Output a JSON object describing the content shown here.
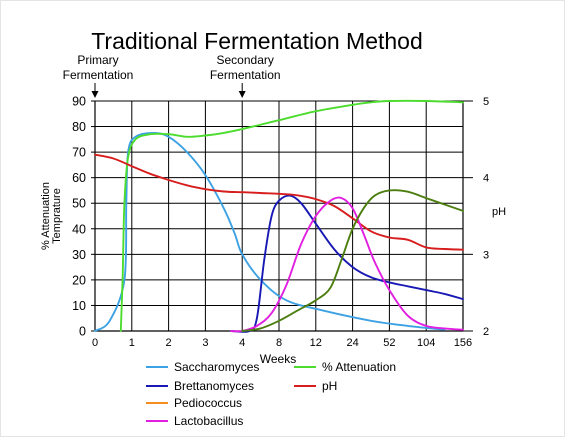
{
  "chart_data": {
    "type": "line",
    "title": "Traditional Fermentation Method",
    "annotations": [
      {
        "lines": [
          "Primary",
          "Fermentation"
        ],
        "at_x_label": "0"
      },
      {
        "lines": [
          "Secondary",
          "Fermentation"
        ],
        "at_x_label": "4"
      }
    ],
    "xlabel": "Weeks",
    "x_tick_labels": [
      "0",
      "1",
      "2",
      "3",
      "4",
      "8",
      "12",
      "24",
      "52",
      "104",
      "156"
    ],
    "y_left": {
      "label_lines": [
        "% Attenuation",
        "Temprature"
      ],
      "ticks": [
        0,
        10,
        20,
        30,
        40,
        50,
        60,
        70,
        80,
        90
      ],
      "range": [
        0,
        90
      ]
    },
    "y_right": {
      "label": "pH",
      "ticks": [
        2,
        3,
        4,
        5
      ],
      "range": [
        2,
        5
      ]
    },
    "grid": true,
    "legend_position": "bottom",
    "series": [
      {
        "name": "Saccharomyces",
        "color": "#3da2e3",
        "axis": "left",
        "points": [
          [
            0,
            0
          ],
          [
            0.4,
            4
          ],
          [
            0.8,
            20
          ],
          [
            0.85,
            50
          ],
          [
            0.9,
            70
          ],
          [
            1.1,
            76
          ],
          [
            1.6,
            77.5
          ],
          [
            2.0,
            76
          ],
          [
            2.5,
            70
          ],
          [
            3.0,
            61
          ],
          [
            3.5,
            48
          ],
          [
            3.8,
            38
          ],
          [
            4.0,
            30
          ],
          [
            4.5,
            20
          ],
          [
            5.2,
            12
          ],
          [
            6.2,
            8
          ],
          [
            7.5,
            4
          ],
          [
            8.5,
            2
          ],
          [
            9.5,
            0.5
          ]
        ]
      },
      {
        "name": "% Attenuation",
        "color": "#4cdc2e",
        "axis": "left",
        "points": [
          [
            0.7,
            0
          ],
          [
            0.75,
            20
          ],
          [
            0.8,
            50
          ],
          [
            0.9,
            68
          ],
          [
            1.1,
            75
          ],
          [
            1.5,
            77
          ],
          [
            2.0,
            77
          ],
          [
            2.5,
            76
          ],
          [
            3.0,
            76.5
          ],
          [
            3.5,
            77.5
          ],
          [
            4.0,
            79
          ],
          [
            5.0,
            82.5
          ],
          [
            6.0,
            86
          ],
          [
            7.0,
            88.5
          ],
          [
            7.5,
            89.5
          ],
          [
            8.0,
            90
          ],
          [
            9.0,
            90
          ],
          [
            10.0,
            89.5
          ]
        ]
      },
      {
        "name": "Brettanomyces",
        "color": "#1818b4",
        "axis": "left",
        "points": [
          [
            3.7,
            0
          ],
          [
            4.2,
            0
          ],
          [
            4.4,
            5
          ],
          [
            4.6,
            28
          ],
          [
            4.8,
            45
          ],
          [
            5.0,
            51
          ],
          [
            5.3,
            53
          ],
          [
            5.6,
            50
          ],
          [
            6.0,
            42
          ],
          [
            6.5,
            32
          ],
          [
            7.0,
            25
          ],
          [
            7.5,
            21
          ],
          [
            8.0,
            19
          ],
          [
            8.5,
            17.5
          ],
          [
            9.0,
            16
          ],
          [
            9.5,
            14.5
          ],
          [
            10.0,
            12.5
          ]
        ]
      },
      {
        "name": "pH",
        "color": "#d71d1d",
        "axis": "right",
        "points": [
          [
            0,
            4.3
          ],
          [
            0.5,
            4.25
          ],
          [
            1.0,
            4.15
          ],
          [
            1.5,
            4.05
          ],
          [
            2.0,
            3.97
          ],
          [
            2.5,
            3.9
          ],
          [
            3.0,
            3.85
          ],
          [
            3.5,
            3.82
          ],
          [
            4.0,
            3.81
          ],
          [
            4.5,
            3.8
          ],
          [
            5.0,
            3.79
          ],
          [
            5.5,
            3.77
          ],
          [
            6.0,
            3.72
          ],
          [
            6.5,
            3.63
          ],
          [
            7.0,
            3.47
          ],
          [
            7.5,
            3.3
          ],
          [
            8.0,
            3.22
          ],
          [
            8.5,
            3.19
          ],
          [
            9.0,
            3.09
          ],
          [
            9.5,
            3.07
          ],
          [
            10.0,
            3.06
          ]
        ]
      },
      {
        "name": "Pediococcus",
        "color": "#f58c1e",
        "axis": "left",
        "points": []
      },
      {
        "name": "Lactobacillus",
        "color": "#e21ee1",
        "axis": "left",
        "points": [
          [
            3.7,
            0
          ],
          [
            4.0,
            0
          ],
          [
            4.4,
            2
          ],
          [
            4.8,
            7
          ],
          [
            5.2,
            18
          ],
          [
            5.6,
            34
          ],
          [
            6.0,
            45
          ],
          [
            6.4,
            51
          ],
          [
            6.7,
            52
          ],
          [
            7.0,
            48
          ],
          [
            7.3,
            38
          ],
          [
            7.6,
            27
          ],
          [
            8.0,
            16
          ],
          [
            8.5,
            6
          ],
          [
            9.0,
            2
          ],
          [
            9.5,
            1
          ],
          [
            10.0,
            0.5
          ]
        ]
      },
      {
        "name": "",
        "color": "#4c7e0f",
        "axis": "left",
        "points": [
          [
            4.0,
            0
          ],
          [
            4.5,
            1
          ],
          [
            5.0,
            4
          ],
          [
            5.5,
            8
          ],
          [
            6.0,
            12
          ],
          [
            6.4,
            17
          ],
          [
            6.7,
            28
          ],
          [
            7.0,
            40
          ],
          [
            7.3,
            48
          ],
          [
            7.6,
            53
          ],
          [
            8.0,
            55
          ],
          [
            8.5,
            54.5
          ],
          [
            9.0,
            52
          ],
          [
            9.5,
            49.5
          ],
          [
            10.0,
            47
          ]
        ]
      }
    ],
    "legend": [
      {
        "name": "Saccharomyces",
        "color": "#3da2e3"
      },
      {
        "name": "% Attenuation",
        "color": "#4cdc2e"
      },
      {
        "name": "Brettanomyces",
        "color": "#1818b4"
      },
      {
        "name": "pH",
        "color": "#d71d1d"
      },
      {
        "name": "Pediococcus",
        "color": "#f58c1e"
      },
      {
        "name": "Lactobacillus",
        "color": "#e21ee1"
      }
    ]
  }
}
